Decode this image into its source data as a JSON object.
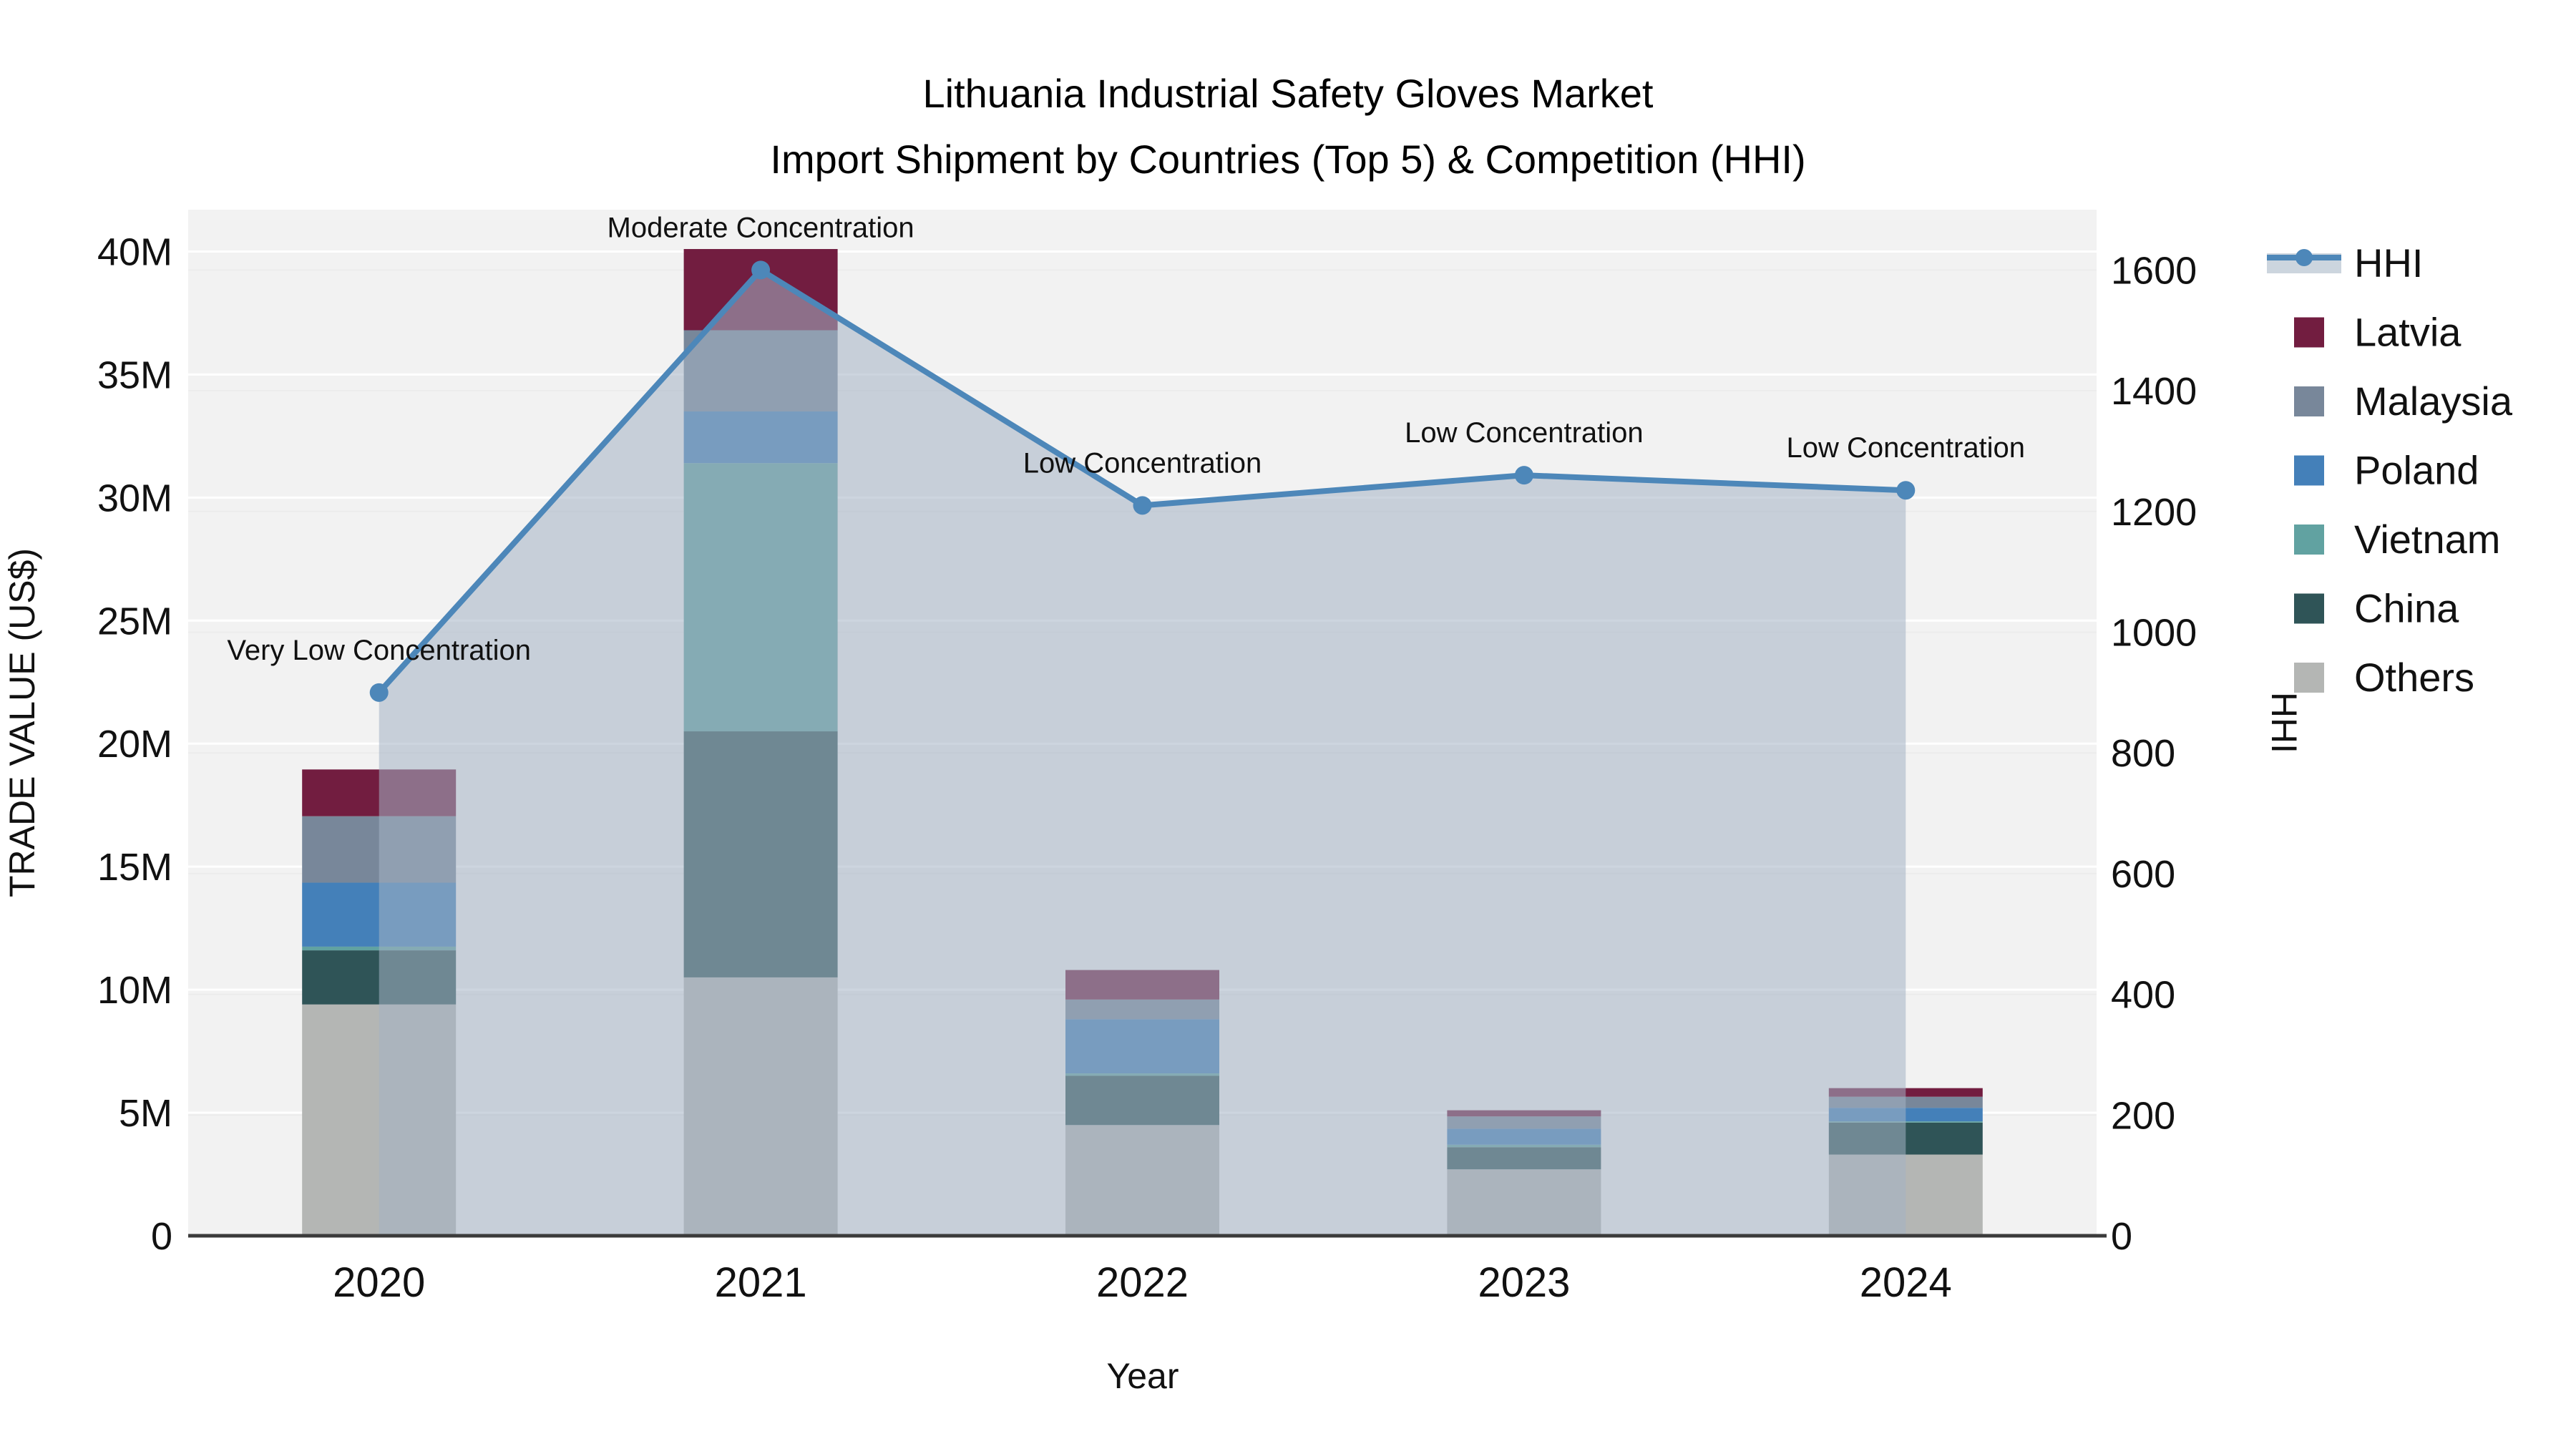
{
  "chart_data": {
    "type": "bar+line",
    "title_line1": "Lithuania Industrial Safety Gloves Market",
    "title_line2": "Import Shipment by Countries (Top 5) & Competition (HHI)",
    "xlabel": "Year",
    "ylabel_left": "TRADE VALUE (US$)",
    "ylabel_right": "HHI",
    "categories": [
      "2020",
      "2021",
      "2022",
      "2023",
      "2024"
    ],
    "stack_order": [
      "Others",
      "China",
      "Vietnam",
      "Poland",
      "Malaysia",
      "Latvia"
    ],
    "series": [
      {
        "name": "Latvia",
        "color": "#721d40",
        "values": [
          1.9,
          3.3,
          1.2,
          0.25,
          0.35
        ]
      },
      {
        "name": "Malaysia",
        "color": "#78879a",
        "values": [
          2.7,
          3.3,
          0.8,
          0.5,
          0.45
        ]
      },
      {
        "name": "Poland",
        "color": "#4480b9",
        "values": [
          2.6,
          2.1,
          2.2,
          0.65,
          0.55
        ]
      },
      {
        "name": "Vietnam",
        "color": "#61a2a1",
        "values": [
          0.15,
          10.9,
          0.1,
          0.1,
          0.05
        ]
      },
      {
        "name": "China",
        "color": "#2f5457",
        "values": [
          2.2,
          10.0,
          2.0,
          0.9,
          1.3
        ]
      },
      {
        "name": "Others",
        "color": "#b4b6b4",
        "values": [
          9.4,
          10.5,
          4.5,
          2.7,
          3.3
        ]
      }
    ],
    "bar_totals_musd": [
      18.95,
      40.1,
      10.8,
      5.1,
      6.0
    ],
    "hhi": {
      "name": "HHI",
      "line_color": "#4d87b9",
      "fill_color": "rgba(164,178,197,0.55)",
      "values": [
        900,
        1600,
        1210,
        1260,
        1235
      ]
    },
    "annotations": [
      "Very Low Concentration",
      "Moderate Concentration",
      "Low Concentration",
      "Low Concentration",
      "Low Concentration"
    ],
    "y_left": {
      "tick_labels": [
        "0",
        "5M",
        "10M",
        "15M",
        "20M",
        "25M",
        "30M",
        "35M",
        "40M"
      ],
      "tick_values": [
        0,
        5,
        10,
        15,
        20,
        25,
        30,
        35,
        40
      ],
      "range_max": 41.7
    },
    "y_right": {
      "tick_labels": [
        "0",
        "200",
        "400",
        "600",
        "800",
        "1000",
        "1200",
        "1400",
        "1600"
      ],
      "tick_values": [
        0,
        200,
        400,
        600,
        800,
        1000,
        1200,
        1400,
        1600
      ],
      "range_max": 1700
    },
    "legend_order": [
      "HHI",
      "Latvia",
      "Malaysia",
      "Poland",
      "Vietnam",
      "China",
      "Others"
    ],
    "legend_hhi_band_color": "#ccd5de",
    "plot_bg_color": "#f2f2f2",
    "gridline_color": "#ffffff",
    "gridline2_color": "#ececec",
    "axisline_color": "#3b3b3b"
  }
}
